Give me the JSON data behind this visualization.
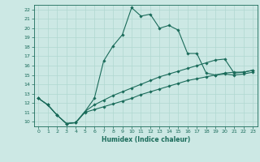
{
  "xlabel": "Humidex (Indice chaleur)",
  "ylabel": "",
  "bg_color": "#cce8e4",
  "line_color": "#1a6b5a",
  "grid_color": "#b0d8d0",
  "xlim": [
    -0.5,
    23.5
  ],
  "ylim": [
    9.5,
    22.5
  ],
  "xticks": [
    0,
    1,
    2,
    3,
    4,
    5,
    6,
    7,
    8,
    9,
    10,
    11,
    12,
    13,
    14,
    15,
    16,
    17,
    18,
    19,
    20,
    21,
    22,
    23
  ],
  "yticks": [
    10,
    11,
    12,
    13,
    14,
    15,
    16,
    17,
    18,
    19,
    20,
    21,
    22
  ],
  "line1_x": [
    0,
    1,
    2,
    3,
    4,
    5,
    6,
    7,
    8,
    9,
    10,
    11,
    12,
    13,
    14,
    15,
    16,
    17,
    18,
    19,
    20,
    21,
    22,
    23
  ],
  "line1_y": [
    12.5,
    11.8,
    10.7,
    9.8,
    9.9,
    11.1,
    12.5,
    16.5,
    18.1,
    19.3,
    22.2,
    21.3,
    21.5,
    20.0,
    20.3,
    19.8,
    17.3,
    17.3,
    15.2,
    15.0,
    15.2,
    15.3,
    15.3,
    15.5
  ],
  "line2_x": [
    0,
    1,
    2,
    3,
    4,
    5,
    6,
    7,
    8,
    9,
    10,
    11,
    12,
    13,
    14,
    15,
    16,
    17,
    18,
    19,
    20,
    21,
    22,
    23
  ],
  "line2_y": [
    12.5,
    11.8,
    10.7,
    9.8,
    9.9,
    11.1,
    11.8,
    12.3,
    12.8,
    13.2,
    13.6,
    14.0,
    14.4,
    14.8,
    15.1,
    15.4,
    15.7,
    16.0,
    16.3,
    16.6,
    16.7,
    15.2,
    15.3,
    15.5
  ],
  "line3_x": [
    0,
    1,
    2,
    3,
    4,
    5,
    6,
    7,
    8,
    9,
    10,
    11,
    12,
    13,
    14,
    15,
    16,
    17,
    18,
    19,
    20,
    21,
    22,
    23
  ],
  "line3_y": [
    12.5,
    11.8,
    10.7,
    9.8,
    9.9,
    11.0,
    11.3,
    11.6,
    11.9,
    12.2,
    12.5,
    12.9,
    13.2,
    13.5,
    13.8,
    14.1,
    14.4,
    14.6,
    14.8,
    15.0,
    15.1,
    15.0,
    15.1,
    15.3
  ]
}
